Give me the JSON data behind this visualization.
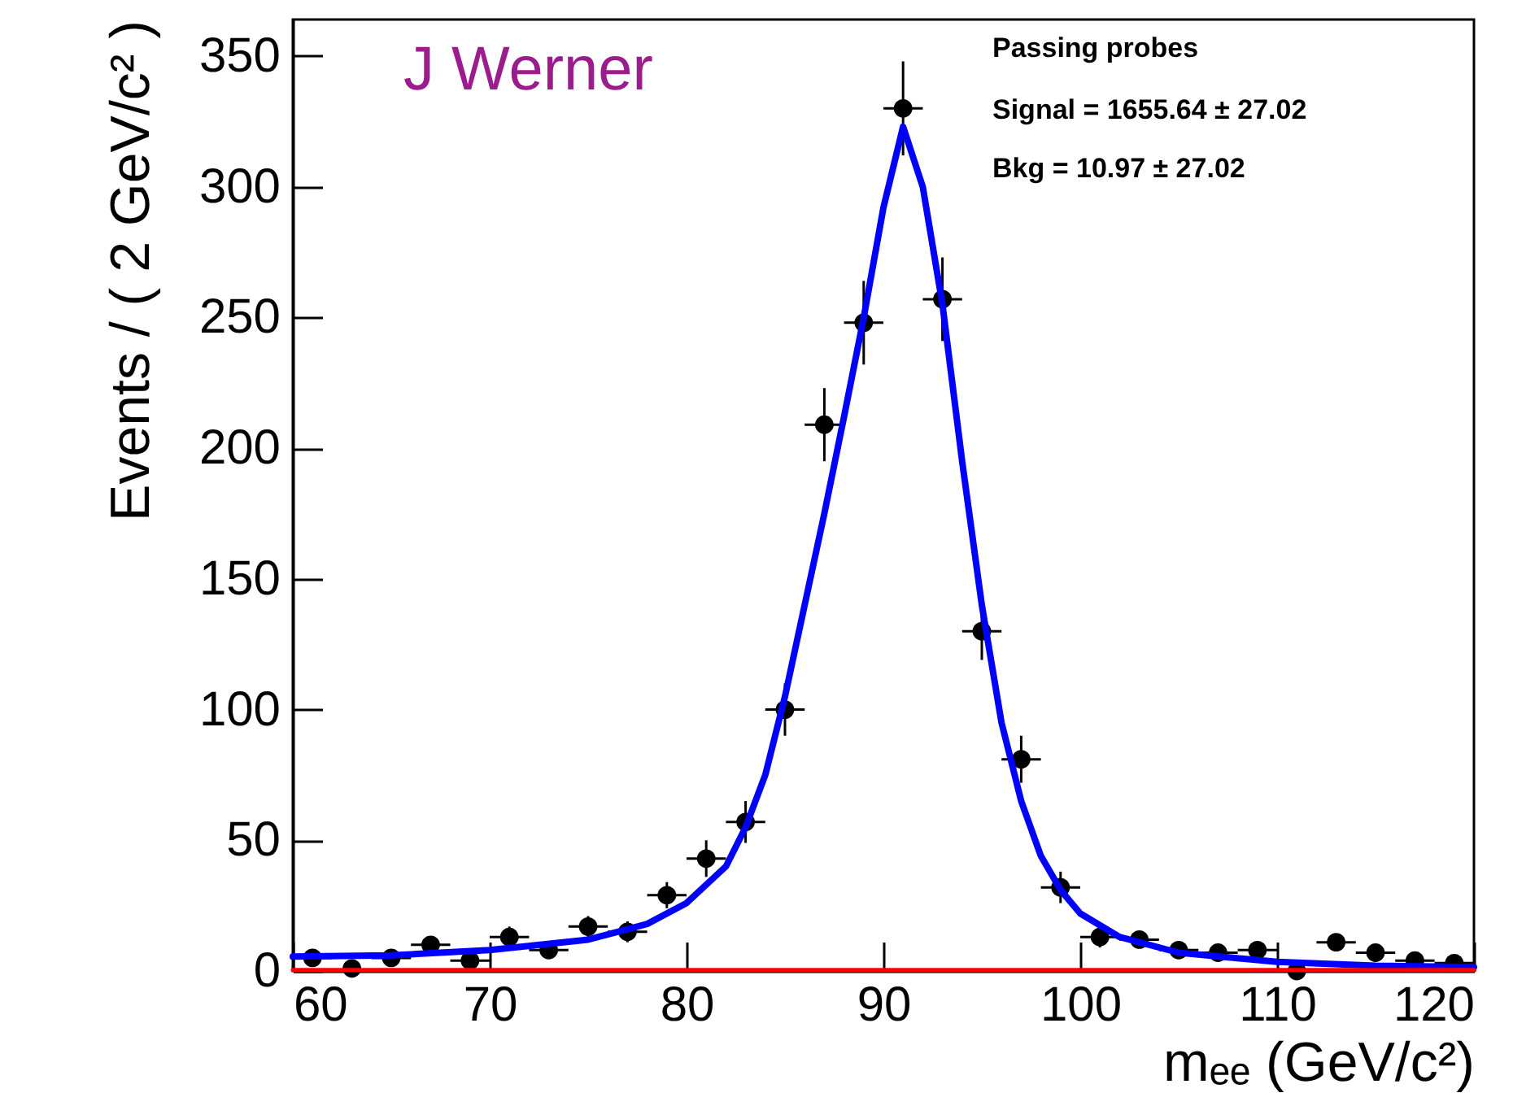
{
  "chart_data": {
    "type": "scatter",
    "xlabel": "mₑₑ (GeV/c²)",
    "ylabel": "Events / ( 2 GeV/c² )",
    "xlim": [
      60,
      120
    ],
    "xticks": [
      60,
      70,
      80,
      90,
      100,
      110,
      120
    ],
    "ylim": [
      0,
      364
    ],
    "yticks": [
      0,
      50,
      100,
      150,
      200,
      250,
      300,
      350
    ],
    "grid": false,
    "annotations": [
      "J Werner",
      "Passing probes",
      "Signal = 1655.64 ± 27.02",
      "Bkg = 10.97 ± 27.02"
    ],
    "series": [
      {
        "color": "#000000",
        "marker": "circle",
        "x": [
          61,
          63,
          65,
          67,
          69,
          71,
          73,
          75,
          77,
          79,
          81,
          83,
          85,
          87,
          89,
          91,
          93,
          95,
          97,
          99,
          101,
          103,
          105,
          107,
          109,
          111,
          113,
          115,
          117,
          119
        ],
        "values": [
          5,
          1,
          5,
          10,
          4,
          13,
          8,
          17,
          15,
          29,
          43,
          57,
          100,
          209,
          248,
          330,
          257,
          130,
          81,
          32,
          13,
          12,
          8,
          7,
          8,
          0,
          11,
          7,
          4,
          3
        ],
        "errors": [
          2,
          1,
          2,
          3,
          2,
          4,
          3,
          4,
          4,
          5,
          7,
          8,
          10,
          14,
          16,
          18,
          16,
          11,
          9,
          6,
          4,
          3,
          3,
          3,
          3,
          null,
          3,
          3,
          2,
          2
        ],
        "xerrors": [
          1,
          null,
          1,
          1,
          1,
          1,
          1,
          1,
          1,
          1,
          1,
          1,
          1,
          1,
          1,
          1,
          1,
          1,
          1,
          1,
          1,
          1,
          1,
          1,
          1,
          null,
          1,
          1,
          1,
          1
        ]
      },
      {
        "type": "line",
        "color": "#0000ff",
        "x": [
          60,
          65,
          70,
          75,
          78,
          80,
          82,
          83,
          84,
          85,
          86,
          87,
          88,
          89,
          90,
          91,
          92,
          93,
          94,
          95,
          96,
          97,
          98,
          99,
          100,
          102,
          105,
          110,
          115,
          120
        ],
        "values": [
          5.5,
          6,
          8,
          12,
          18,
          26,
          40,
          55,
          75,
          105,
          140,
          175,
          212,
          250,
          292,
          323,
          300,
          255,
          195,
          140,
          95,
          65,
          44,
          31,
          22,
          13,
          7,
          3.5,
          2,
          1.5
        ]
      },
      {
        "type": "line",
        "color": "#ff0000",
        "x": [
          60,
          120
        ],
        "values": [
          0.4,
          0.4
        ]
      }
    ]
  }
}
